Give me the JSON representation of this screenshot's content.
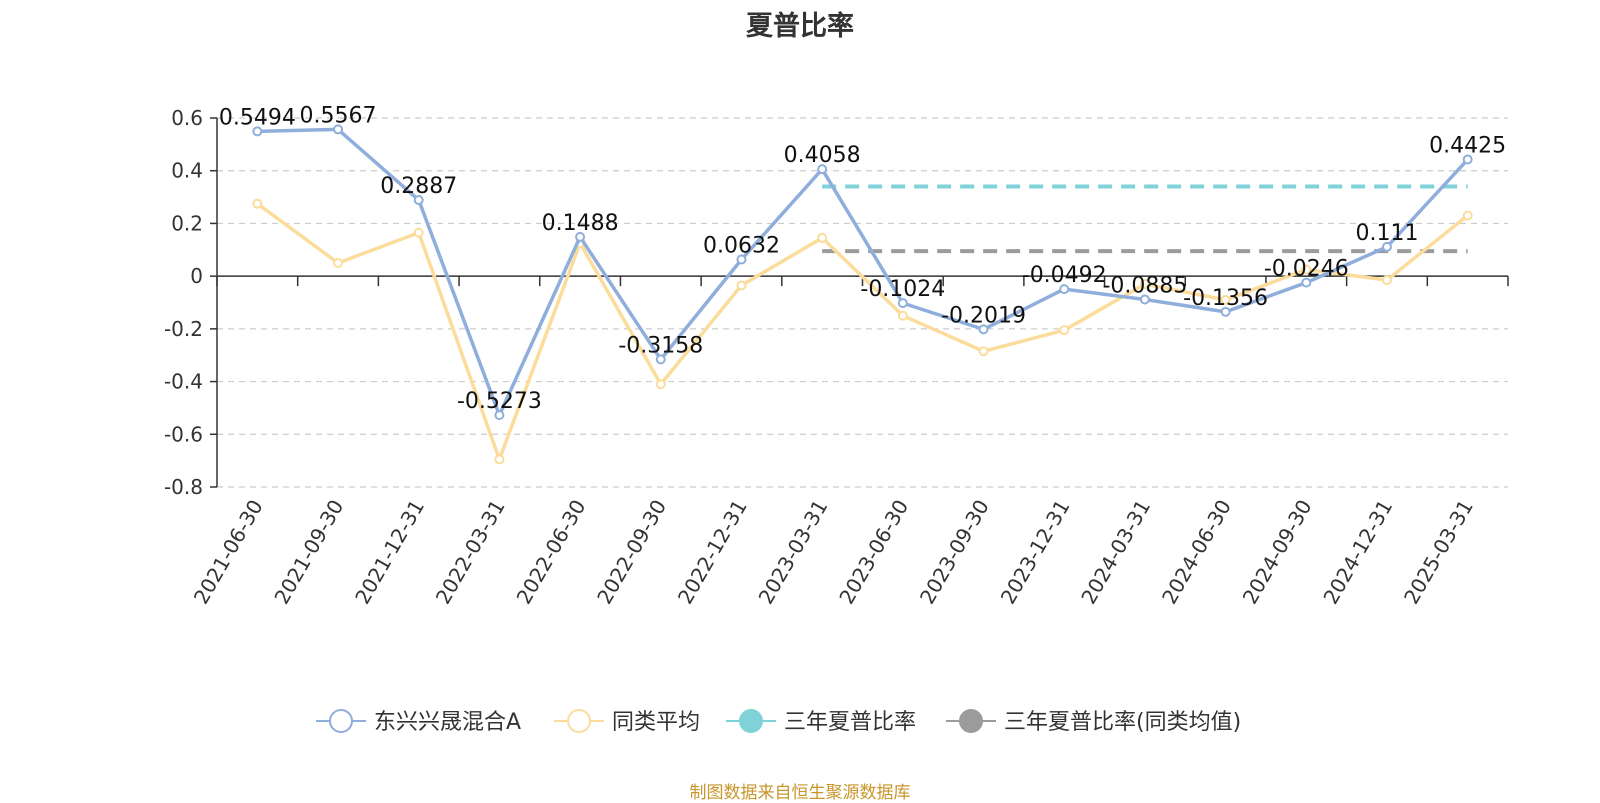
{
  "title": "夏普比率",
  "source_note": "制图数据来自恒生聚源数据库",
  "chart_data": {
    "type": "line",
    "categories": [
      "2021-06-30",
      "2021-09-30",
      "2021-12-31",
      "2022-03-31",
      "2022-06-30",
      "2022-09-30",
      "2022-12-31",
      "2023-03-31",
      "2023-06-30",
      "2023-09-30",
      "2023-12-31",
      "2024-03-31",
      "2024-06-30",
      "2024-09-30",
      "2024-12-31",
      "2025-03-31"
    ],
    "ylim": [
      -0.8,
      0.6
    ],
    "yticks": [
      0.6,
      0.4,
      0.2,
      0,
      -0.2,
      -0.4,
      -0.6,
      -0.8
    ],
    "ytick_labels": [
      "0.6",
      "0.4",
      "0.2",
      "0",
      "-0.2",
      "-0.4",
      "-0.6",
      "-0.8"
    ],
    "grid": true,
    "legend_position": "bottom-center",
    "series": [
      {
        "name": "东兴兴晟混合A",
        "color": "#8faedb",
        "values": [
          0.5494,
          0.5567,
          0.2887,
          -0.5273,
          0.1488,
          -0.3158,
          0.0632,
          0.4058,
          -0.1024,
          -0.2019,
          -0.0492,
          -0.0885,
          -0.1356,
          -0.0246,
          0.111,
          0.4425
        ],
        "labels": [
          "0.5494",
          "0.5567",
          "0.2887",
          "-0.5273",
          "0.1488",
          "-0.3158",
          "0.0632",
          "0.4058",
          "-0.1024",
          "-0.2019",
          "-0.0492",
          "-0.0885",
          "-0.1356",
          "-0.0246",
          "0.111",
          "0.4425"
        ]
      },
      {
        "name": "同类平均",
        "color": "#fbdc9b",
        "values": [
          0.275,
          0.05,
          0.165,
          -0.695,
          0.125,
          -0.41,
          -0.035,
          0.145,
          -0.15,
          -0.285,
          -0.205,
          -0.03,
          -0.09,
          0.025,
          -0.015,
          0.23
        ]
      }
    ],
    "reference_lines": [
      {
        "name": "三年夏普比率",
        "color": "#7fd3d8",
        "value": 0.34,
        "x_start": "2023-03-31",
        "x_end": "2025-03-31"
      },
      {
        "name": "三年夏普比率(同类均值)",
        "color": "#9b9b9b",
        "value": 0.095,
        "x_start": "2023-03-31",
        "x_end": "2025-03-31"
      }
    ]
  }
}
